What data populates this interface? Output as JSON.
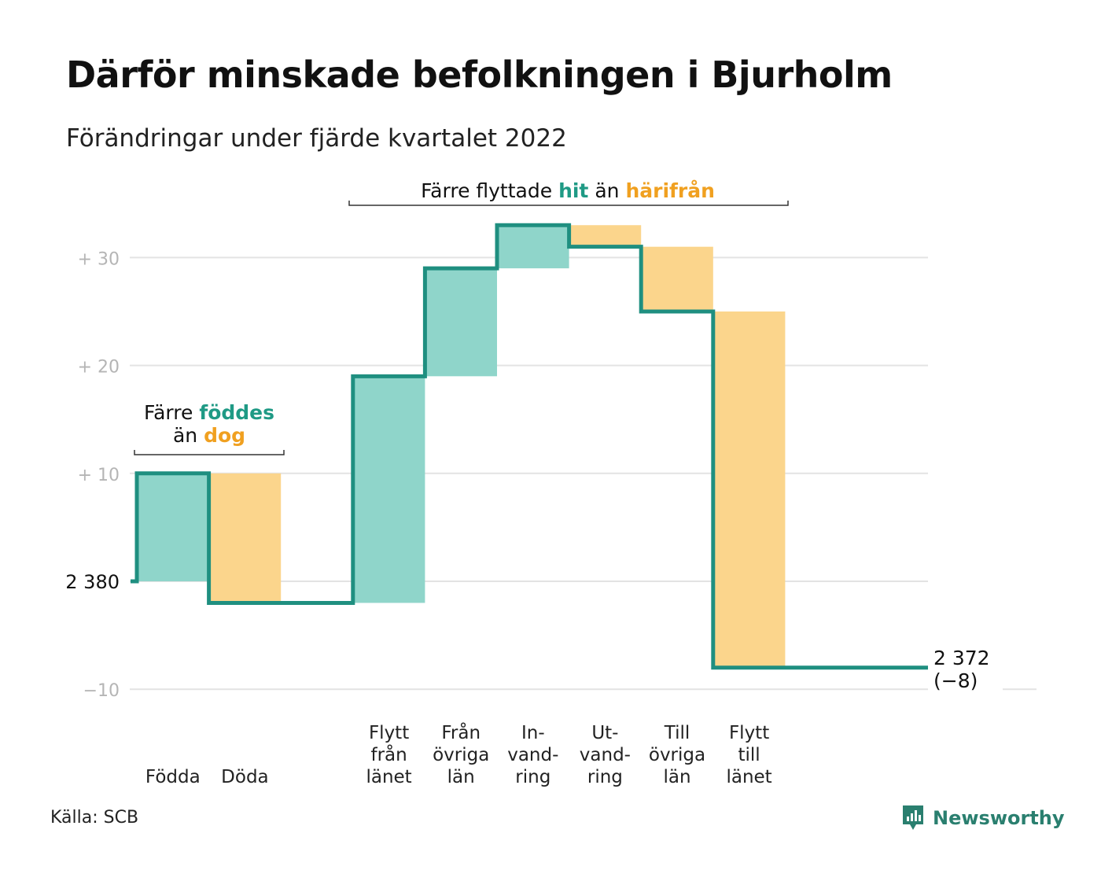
{
  "title": "Därför minskade befolkningen i Bjurholm",
  "subtitle": "Förändringar under fjärde kvartalet 2022",
  "source": "Källa: SCB",
  "brand": "Newsworthy",
  "annotations": {
    "births_deaths": {
      "line1_pre": "Färre ",
      "line1_hl": "föddes",
      "line2_pre": "än ",
      "line2_hl": "dog"
    },
    "migration": {
      "pre": "Färre flyttade ",
      "hl1": "hit",
      "mid": " än ",
      "hl2": "härifrån"
    }
  },
  "colors": {
    "increase": "#8fd5ca",
    "decrease": "#fbd58c",
    "line": "#1f8f80",
    "accent_green": "#1f9a85",
    "accent_orange": "#f0a020",
    "grid": "#e3e3e3",
    "tick": "#b5b5b5"
  },
  "chart_data": {
    "type": "waterfall",
    "start_label": "2 380",
    "end_label": "2 372",
    "end_change_label": "(−8)",
    "y_ticks": [
      {
        "value": 30,
        "label": "+ 30"
      },
      {
        "value": 20,
        "label": "+ 20"
      },
      {
        "value": 10,
        "label": "+ 10"
      },
      {
        "value": 0,
        "label": "2 380"
      },
      {
        "value": -10,
        "label": "−10"
      }
    ],
    "ylim": [
      -10,
      33
    ],
    "steps": [
      {
        "label": [
          "Födda"
        ],
        "change": 10
      },
      {
        "label": [
          "Döda"
        ],
        "change": -12
      },
      {
        "label": [],
        "change": 0
      },
      {
        "label": [
          "Flytt",
          "från",
          "länet"
        ],
        "change": 21
      },
      {
        "label": [
          "Från",
          "övriga",
          "län"
        ],
        "change": 10
      },
      {
        "label": [
          "In-",
          "vand-",
          "ring"
        ],
        "change": 4
      },
      {
        "label": [
          "Ut-",
          "vand-",
          "ring"
        ],
        "change": -2
      },
      {
        "label": [
          "Till",
          "övriga",
          "län"
        ],
        "change": -6
      },
      {
        "label": [
          "Flytt",
          "till",
          "länet"
        ],
        "change": -33
      }
    ]
  }
}
